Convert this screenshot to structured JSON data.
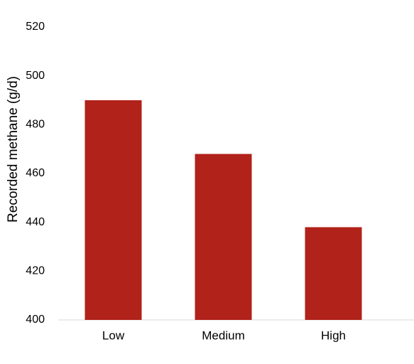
{
  "chart_data": {
    "type": "bar",
    "y_label": "Recorded methane (g/d)",
    "categories": [
      "Low",
      "Medium",
      "High"
    ],
    "values": [
      490,
      468,
      438
    ],
    "color": "#b0221a",
    "ylim": [
      400,
      520
    ],
    "yticks": [
      400,
      420,
      440,
      460,
      480,
      500,
      520
    ],
    "grid": false
  }
}
